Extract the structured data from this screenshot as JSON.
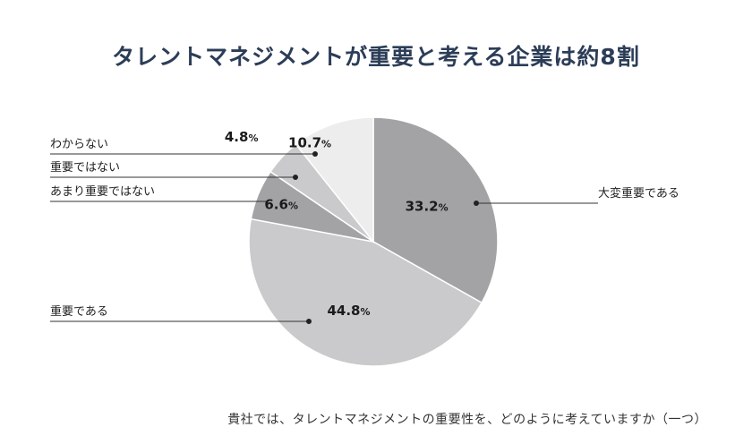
{
  "chart_data": {
    "type": "pie",
    "title": "タレントマネジメントが重要と考える企業は約8割",
    "caption": "貴社では、タレントマネジメントの重要性を、どのように考えていますか（一つ）",
    "start_angle_deg": 0,
    "direction": "clockwise",
    "slices": [
      {
        "label": "大変重要である",
        "value": 33.2,
        "display": "33.2",
        "color": "#a3a3a6"
      },
      {
        "label": "重要である",
        "value": 44.8,
        "display": "44.8",
        "color": "#cacacc"
      },
      {
        "label": "あまり重要ではない",
        "value": 6.6,
        "display": "6.6",
        "color": "#a3a3a6"
      },
      {
        "label": "重要ではない",
        "value": 4.8,
        "display": "4.8",
        "color": "#cacacc"
      },
      {
        "label": "わからない",
        "value": 10.7,
        "display": "10.7",
        "color": "#ededee"
      }
    ],
    "percent_sign": "%"
  }
}
